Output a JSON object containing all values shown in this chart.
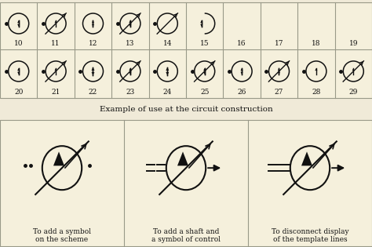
{
  "bg_color": "#f0ead8",
  "grid_bg": "#f5f0dc",
  "border_color": "#999988",
  "symbol_color": "#111111",
  "title_text": "Example of use at the circuit construction",
  "bottom_labels": [
    "To add a symbol\non the scheme",
    "To add a shaft and\na symbol of control",
    "To disconnect display\nof the template lines"
  ],
  "row1_nums": [
    "10",
    "11",
    "12",
    "13",
    "14",
    "15",
    "16",
    "17",
    "18",
    "19"
  ],
  "row2_nums": [
    "20",
    "21",
    "22",
    "23",
    "24",
    "25",
    "26",
    "27",
    "28",
    "29"
  ]
}
